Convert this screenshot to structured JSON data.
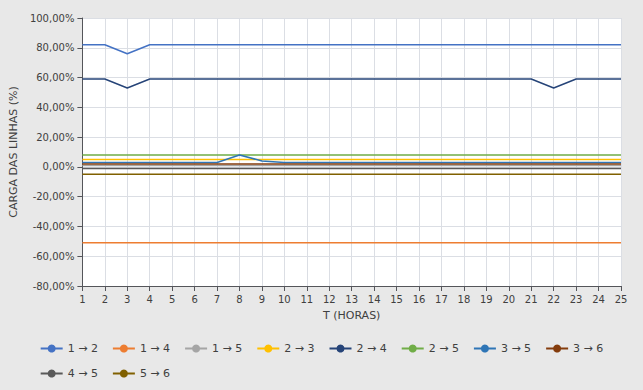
{
  "chart_data": {
    "type": "line",
    "x": [
      1,
      2,
      3,
      4,
      5,
      6,
      7,
      8,
      9,
      10,
      11,
      12,
      13,
      14,
      15,
      16,
      17,
      18,
      19,
      20,
      21,
      22,
      23,
      24,
      25
    ],
    "xlabel": "T (HORAS)",
    "ylabel": "CARGA DAS LINHAS (%)",
    "xlim": [
      1,
      25
    ],
    "xticks": [
      1,
      2,
      3,
      4,
      5,
      6,
      7,
      8,
      9,
      10,
      11,
      12,
      13,
      14,
      15,
      16,
      17,
      18,
      19,
      20,
      21,
      22,
      23,
      24,
      25
    ],
    "ylim": [
      -80,
      100
    ],
    "yticks": [
      {
        "value": -80,
        "label": "-80,00%"
      },
      {
        "value": -60,
        "label": "-60,00%"
      },
      {
        "value": -40,
        "label": "-40,00%"
      },
      {
        "value": -20,
        "label": "-20,00%"
      },
      {
        "value": 0,
        "label": "0,00%"
      },
      {
        "value": 20,
        "label": "20,00%"
      },
      {
        "value": 40,
        "label": "40,00%"
      },
      {
        "value": 60,
        "label": "60,00%"
      },
      {
        "value": 80,
        "label": "80,00%"
      },
      {
        "value": 100,
        "label": "100,00%"
      }
    ],
    "grid": true,
    "legend": "bottom",
    "series": [
      {
        "name": "1 → 2",
        "color": "#4472C4",
        "values": [
          82,
          82,
          76,
          82,
          82,
          82,
          82,
          82,
          82,
          82,
          82,
          82,
          82,
          82,
          82,
          82,
          82,
          82,
          82,
          82,
          82,
          82,
          82,
          82,
          82
        ]
      },
      {
        "name": "1 → 4",
        "color": "#ED7D31",
        "values": [
          -51,
          -51,
          -51,
          -51,
          -51,
          -51,
          -51,
          -51,
          -51,
          -51,
          -51,
          -51,
          -51,
          -51,
          -51,
          -51,
          -51,
          -51,
          -51,
          -51,
          -51,
          -51,
          -51,
          -51,
          -51
        ]
      },
      {
        "name": "1 → 5",
        "color": "#A5A5A5",
        "values": [
          1,
          1,
          1,
          1,
          1,
          1,
          1,
          1,
          1,
          1,
          1,
          1,
          1,
          1,
          1,
          1,
          1,
          1,
          1,
          1,
          1,
          1,
          1,
          1,
          1
        ]
      },
      {
        "name": "2 → 3",
        "color": "#FFC000",
        "values": [
          5,
          5,
          5,
          5,
          5,
          5,
          5,
          5,
          5,
          5,
          5,
          5,
          5,
          5,
          5,
          5,
          5,
          5,
          5,
          5,
          5,
          5,
          5,
          5,
          5
        ]
      },
      {
        "name": "2 → 4",
        "color": "#264478",
        "values": [
          59,
          59,
          53,
          59,
          59,
          59,
          59,
          59,
          59,
          59,
          59,
          59,
          59,
          59,
          59,
          59,
          59,
          59,
          59,
          59,
          59,
          53,
          59,
          59,
          59
        ]
      },
      {
        "name": "2 → 5",
        "color": "#70AD47",
        "values": [
          8,
          8,
          8,
          8,
          8,
          8,
          8,
          8,
          8,
          8,
          8,
          8,
          8,
          8,
          8,
          8,
          8,
          8,
          8,
          8,
          8,
          8,
          8,
          8,
          8
        ]
      },
      {
        "name": "3 → 5",
        "color": "#2E75B6",
        "values": [
          3,
          3,
          3,
          3,
          3,
          3,
          3,
          8,
          4,
          3,
          3,
          3,
          3,
          3,
          3,
          3,
          3,
          3,
          3,
          3,
          3,
          3,
          3,
          3,
          3
        ]
      },
      {
        "name": "3 → 6",
        "color": "#843C0C",
        "values": [
          2,
          2,
          2,
          2,
          2,
          2,
          2,
          2,
          2,
          2,
          2,
          2,
          2,
          2,
          2,
          2,
          2,
          2,
          2,
          2,
          2,
          2,
          2,
          2,
          2
        ]
      },
      {
        "name": "4 → 5",
        "color": "#595959",
        "values": [
          -1,
          -1,
          -1,
          -1,
          -1,
          -1,
          -1,
          -1,
          -1,
          -1,
          -1,
          -1,
          -1,
          -1,
          -1,
          -1,
          -1,
          -1,
          -1,
          -1,
          -1,
          -1,
          -1,
          -1,
          -1
        ]
      },
      {
        "name": "5 → 6",
        "color": "#806000",
        "values": [
          -5,
          -5,
          -5,
          -5,
          -5,
          -5,
          -5,
          -5,
          -5,
          -5,
          -5,
          -5,
          -5,
          -5,
          -5,
          -5,
          -5,
          -5,
          -5,
          -5,
          -5,
          -5,
          -5,
          -5,
          -5
        ]
      }
    ]
  }
}
